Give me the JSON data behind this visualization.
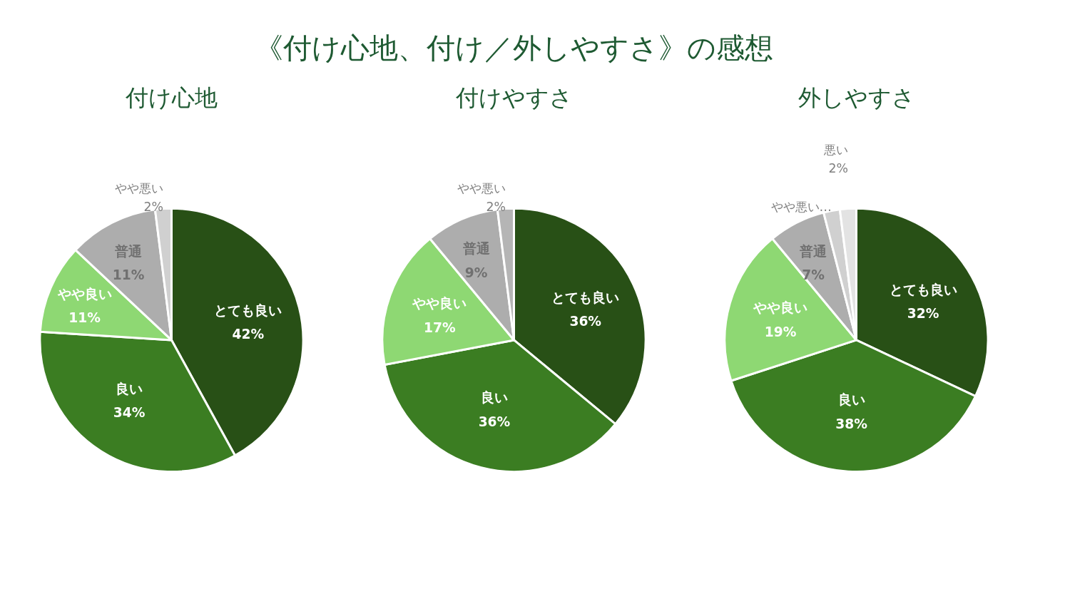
{
  "chart_data": [
    {
      "type": "other",
      "title": "《付け心地、付け／外しやすさ》の感想"
    },
    {
      "type": "pie",
      "title": "付け心地",
      "categories": [
        "とても良い",
        "良い",
        "やや良い",
        "普通",
        "やや悪い"
      ],
      "values": [
        42,
        34,
        11,
        11,
        2
      ],
      "colors": [
        "#285016",
        "#3b7d22",
        "#8ed873",
        "#adadad",
        "#d0d0d0"
      ],
      "value_labels": [
        "42%",
        "34%",
        "11%",
        "11%",
        "2%"
      ]
    },
    {
      "type": "pie",
      "title": "付けやすさ",
      "categories": [
        "とても良い",
        "良い",
        "やや良い",
        "普通",
        "やや悪い"
      ],
      "values": [
        36,
        36,
        17,
        9,
        2
      ],
      "colors": [
        "#285016",
        "#3b7d22",
        "#8ed873",
        "#adadad",
        "#b5b5b5"
      ],
      "value_labels": [
        "36%",
        "36%",
        "17%",
        "9%",
        "2%"
      ]
    },
    {
      "type": "pie",
      "title": "外しやすさ",
      "categories": [
        "とても良い",
        "良い",
        "やや良い",
        "普通",
        "やや悪い…",
        "悪い"
      ],
      "values": [
        32,
        38,
        19,
        7,
        2,
        2
      ],
      "colors": [
        "#285016",
        "#3b7d22",
        "#8ed873",
        "#adadad",
        "#d0d0d0",
        "#e3e3e3"
      ],
      "value_labels": [
        "32%",
        "38%",
        "19%",
        "7%",
        null,
        "2%"
      ]
    }
  ]
}
